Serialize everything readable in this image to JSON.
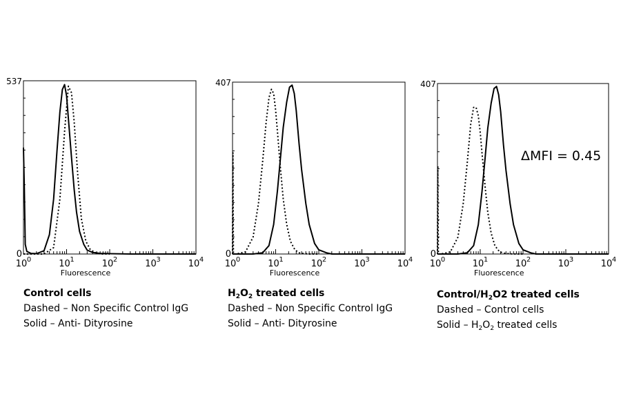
{
  "chart_data": [
    {
      "type": "line",
      "xscale": "log",
      "xlim": [
        1,
        10000
      ],
      "ylim": [
        0,
        537
      ],
      "xlabel": "Fluorescence",
      "x_ticks": [
        "10",
        "10",
        "10",
        "10",
        "10"
      ],
      "x_tick_exponents": [
        "0",
        "1",
        "2",
        "3",
        "4"
      ],
      "y_tick_labels": [
        "0",
        "537"
      ],
      "series": [
        {
          "style": "dashed",
          "x": [
            1,
            3,
            5,
            7,
            9,
            11,
            13,
            15,
            18,
            22,
            28,
            35,
            45,
            60,
            100
          ],
          "y": [
            0,
            0,
            20,
            170,
            380,
            520,
            500,
            410,
            250,
            110,
            40,
            15,
            5,
            0,
            0
          ]
        },
        {
          "style": "solid",
          "x": [
            1,
            1.05,
            1.1,
            1.2,
            1.5,
            2,
            3,
            4,
            5,
            6,
            7,
            8,
            9,
            10,
            11,
            13,
            15,
            17,
            20,
            25,
            30,
            40,
            60,
            100,
            300,
            1000,
            10000
          ],
          "y": [
            330,
            200,
            30,
            8,
            2,
            1,
            10,
            60,
            170,
            320,
            440,
            510,
            525,
            490,
            420,
            300,
            200,
            130,
            70,
            30,
            12,
            5,
            2,
            1,
            0,
            0,
            0
          ]
        }
      ],
      "caption_title": "Control cells",
      "caption_lines": [
        "Dashed – Non Specific Control IgG",
        "Solid – Anti- Dityrosine"
      ]
    },
    {
      "type": "line",
      "xscale": "log",
      "xlim": [
        1,
        10000
      ],
      "ylim": [
        0,
        407
      ],
      "xlabel": "Fluorescence",
      "x_ticks": [
        "10",
        "10",
        "10",
        "10",
        "10"
      ],
      "x_tick_exponents": [
        "0",
        "1",
        "2",
        "3",
        "4"
      ],
      "y_tick_labels": [
        "0",
        "407"
      ],
      "series": [
        {
          "style": "dashed",
          "x": [
            1,
            1.02,
            1.05,
            1.2,
            2,
            3,
            4,
            5,
            6,
            7,
            8,
            9,
            10,
            11,
            13,
            15,
            18,
            22,
            28,
            35,
            45,
            60,
            100
          ],
          "y": [
            0,
            240,
            0,
            0,
            5,
            40,
            120,
            220,
            310,
            370,
            390,
            380,
            340,
            290,
            200,
            130,
            70,
            30,
            10,
            3,
            1,
            0,
            0
          ]
        },
        {
          "style": "solid",
          "x": [
            1,
            3,
            5,
            7,
            9,
            11,
            13,
            15,
            18,
            21,
            24,
            27,
            30,
            35,
            40,
            50,
            60,
            80,
            100,
            150,
            200,
            300,
            10000
          ],
          "y": [
            0,
            0,
            3,
            20,
            70,
            150,
            230,
            300,
            360,
            395,
            400,
            380,
            340,
            260,
            200,
            120,
            70,
            25,
            10,
            3,
            0,
            0,
            0
          ]
        }
      ],
      "caption_title_parts": [
        "H",
        "2",
        "O",
        "2",
        " treated cells"
      ],
      "caption_lines": [
        "Dashed – Non Specific Control IgG",
        "Solid – Anti- Dityrosine"
      ]
    },
    {
      "type": "line",
      "xscale": "log",
      "xlim": [
        1,
        10000
      ],
      "ylim": [
        0,
        407
      ],
      "xlabel": "Fluorescence",
      "x_ticks": [
        "10",
        "10",
        "10",
        "10",
        "10"
      ],
      "x_tick_exponents": [
        "0",
        "1",
        "2",
        "3",
        "4"
      ],
      "y_tick_labels": [
        "0",
        "407"
      ],
      "series": [
        {
          "style": "dashed",
          "x": [
            1,
            1.02,
            1.05,
            1.2,
            2,
            3,
            4,
            5,
            6,
            7,
            8,
            9,
            10,
            11,
            13,
            15,
            18,
            22,
            28,
            35,
            45,
            60,
            100
          ],
          "y": [
            0,
            210,
            0,
            0,
            5,
            40,
            120,
            220,
            310,
            350,
            350,
            330,
            290,
            240,
            160,
            100,
            50,
            20,
            6,
            2,
            1,
            0,
            0
          ]
        },
        {
          "style": "solid",
          "x": [
            1,
            3,
            5,
            7,
            9,
            11,
            13,
            15,
            18,
            21,
            24,
            27,
            30,
            35,
            40,
            50,
            60,
            80,
            100,
            150,
            200,
            300,
            10000
          ],
          "y": [
            0,
            0,
            3,
            20,
            70,
            150,
            230,
            300,
            360,
            395,
            400,
            380,
            340,
            260,
            200,
            120,
            70,
            25,
            10,
            3,
            0,
            0,
            0
          ]
        }
      ],
      "annotation": "ΔMFI = 0.45",
      "caption_title_parts": [
        "Control/H",
        "2",
        "O2 treated cells"
      ],
      "caption_lines": [
        "Dashed – Control cells"
      ],
      "caption_last_parts": [
        "Solid – H",
        "2",
        "O",
        "2",
        " treated cells"
      ]
    }
  ]
}
